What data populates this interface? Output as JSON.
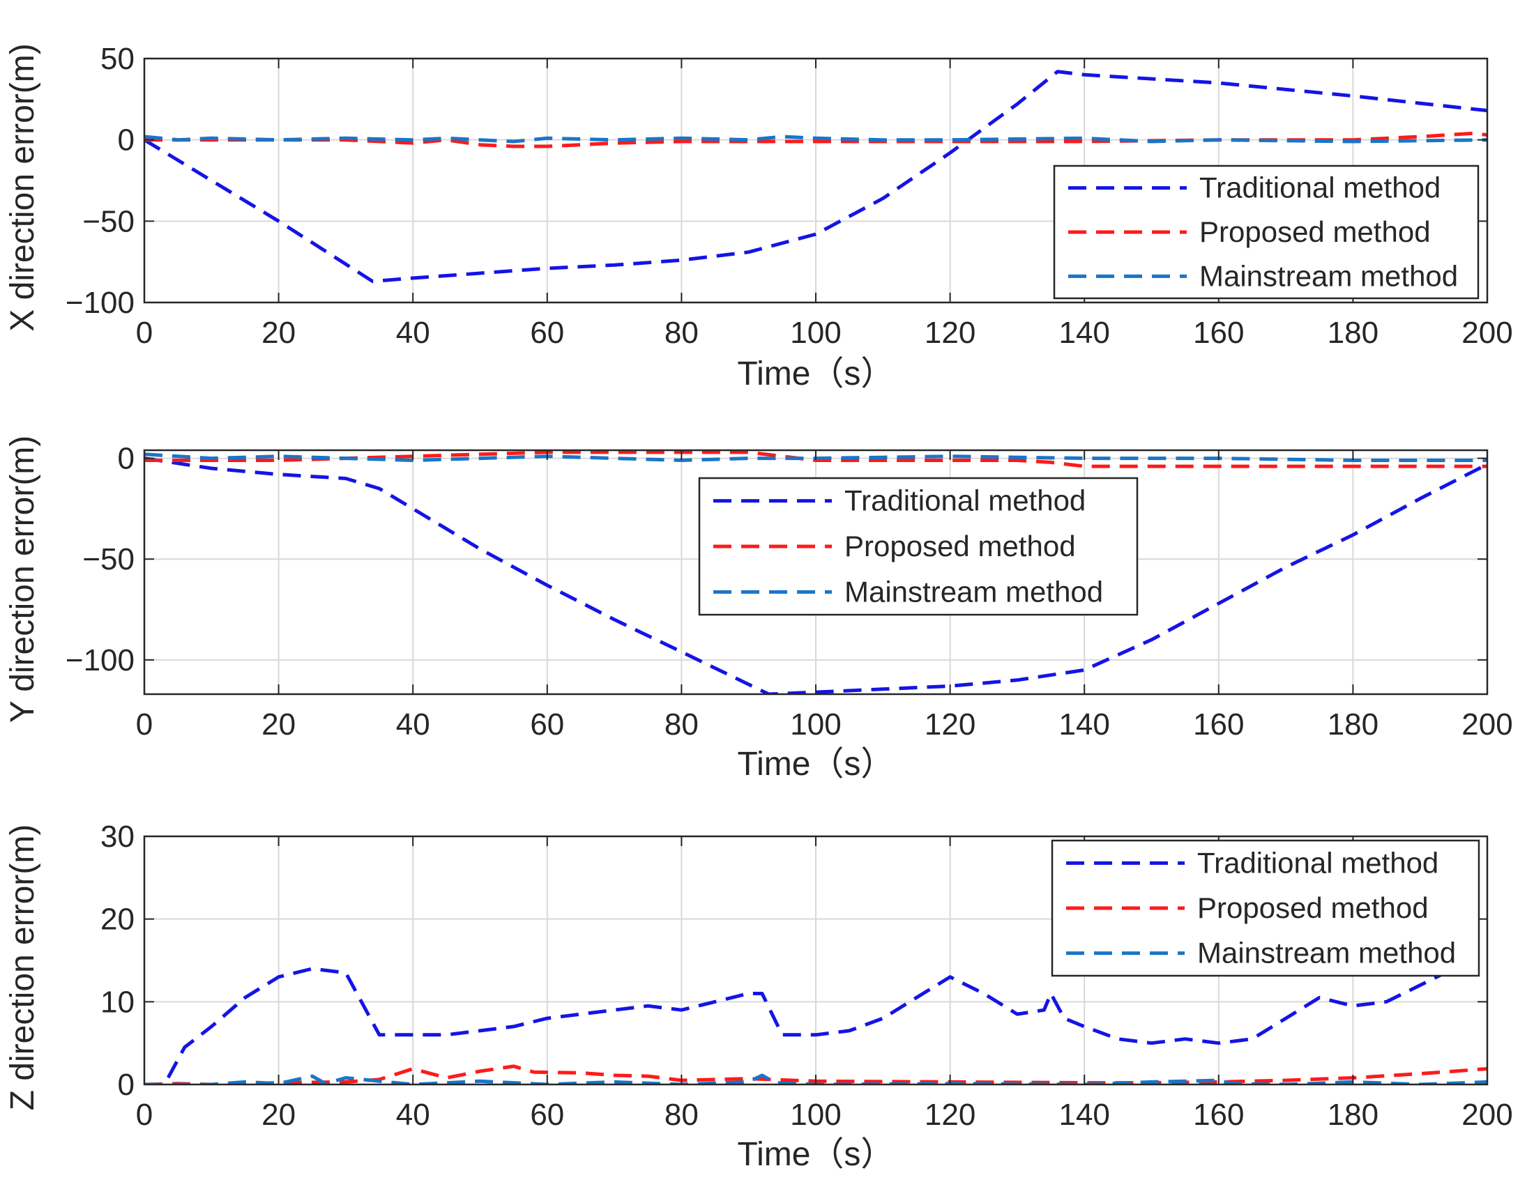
{
  "chart_data": [
    {
      "type": "line",
      "xlabel": "Time（s）",
      "ylabel": "X direction error(m)",
      "xlim": [
        0,
        200
      ],
      "ylim": [
        -100,
        50
      ],
      "xticks": [
        0,
        20,
        40,
        60,
        80,
        100,
        120,
        140,
        160,
        180,
        200
      ],
      "yticks": [
        -100,
        -50,
        0,
        50
      ],
      "ytick_labels": [
        "−100",
        "−50",
        "0",
        "50"
      ],
      "grid": true,
      "legend_position": "right",
      "series": [
        {
          "name": "Traditional method",
          "color": "#1414e6",
          "x": [
            0,
            10,
            20,
            34,
            40,
            50,
            60,
            70,
            80,
            90,
            100,
            110,
            120,
            130,
            136,
            140,
            160,
            180,
            200
          ],
          "y": [
            0,
            -25,
            -50,
            -87,
            -85,
            -82,
            -79,
            -77,
            -74,
            -69,
            -58,
            -36,
            -8,
            22,
            42,
            40,
            35,
            27,
            18
          ]
        },
        {
          "name": "Proposed method",
          "color": "#ff1a1a",
          "x": [
            0,
            10,
            20,
            30,
            40,
            45,
            50,
            55,
            60,
            70,
            80,
            100,
            120,
            140,
            160,
            180,
            190,
            198,
            200
          ],
          "y": [
            0,
            0,
            0,
            0,
            -2,
            0,
            -3,
            -4,
            -4,
            -2,
            -1,
            -1,
            -1,
            -1,
            0,
            0,
            2,
            4,
            3
          ]
        },
        {
          "name": "Mainstream method",
          "color": "#1a75c8",
          "x": [
            0,
            5,
            10,
            20,
            30,
            40,
            45,
            50,
            55,
            60,
            70,
            80,
            90,
            95,
            100,
            110,
            120,
            140,
            150,
            160,
            180,
            200
          ],
          "y": [
            2,
            0,
            1,
            0,
            1,
            0,
            1,
            0,
            -1,
            1,
            0,
            1,
            0,
            2,
            1,
            0,
            0,
            1,
            -1,
            0,
            -1,
            0
          ]
        }
      ]
    },
    {
      "type": "line",
      "xlabel": "Time（s）",
      "ylabel": "Y direction error(m)",
      "xlim": [
        0,
        200
      ],
      "ylim": [
        -117,
        4
      ],
      "xticks": [
        0,
        20,
        40,
        60,
        80,
        100,
        120,
        140,
        160,
        180,
        200
      ],
      "yticks": [
        -100,
        -50,
        0
      ],
      "ytick_labels": [
        "−100",
        "−50",
        "0"
      ],
      "grid": true,
      "legend_position": "center",
      "series": [
        {
          "name": "Traditional method",
          "color": "#1414e6",
          "x": [
            0,
            10,
            20,
            30,
            35,
            40,
            50,
            60,
            70,
            80,
            93,
            100,
            120,
            130,
            140,
            150,
            160,
            170,
            180,
            190,
            200
          ],
          "y": [
            0,
            -5,
            -8,
            -10,
            -15,
            -25,
            -45,
            -63,
            -80,
            -96,
            -117,
            -116,
            -113,
            -110,
            -105,
            -90,
            -72,
            -54,
            -38,
            -20,
            -3
          ]
        },
        {
          "name": "Proposed method",
          "color": "#ff1a1a",
          "x": [
            0,
            20,
            30,
            40,
            50,
            60,
            70,
            80,
            90,
            100,
            120,
            130,
            135,
            140,
            160,
            180,
            200
          ],
          "y": [
            -1,
            -1,
            0,
            1,
            2,
            3,
            3,
            3,
            3,
            -1,
            -1,
            -1,
            -2,
            -4,
            -4,
            -4,
            -4
          ]
        },
        {
          "name": "Mainstream method",
          "color": "#1a75c8",
          "x": [
            0,
            10,
            20,
            30,
            40,
            50,
            60,
            70,
            80,
            90,
            100,
            120,
            140,
            160,
            180,
            200
          ],
          "y": [
            2,
            0,
            1,
            0,
            -1,
            0,
            1,
            0,
            -1,
            0,
            0,
            1,
            0,
            0,
            -1,
            -1
          ]
        }
      ]
    },
    {
      "type": "line",
      "xlabel": "Time（s）",
      "ylabel": "Z direction error(m)",
      "xlim": [
        0,
        200
      ],
      "ylim": [
        0,
        30
      ],
      "xticks": [
        0,
        20,
        40,
        60,
        80,
        100,
        120,
        140,
        160,
        180,
        200
      ],
      "yticks": [
        0,
        10,
        20,
        30
      ],
      "ytick_labels": [
        "0",
        "10",
        "20",
        "30"
      ],
      "grid": true,
      "legend_position": "top-right",
      "series": [
        {
          "name": "Traditional method",
          "color": "#1414e6",
          "x": [
            0,
            3,
            6,
            10,
            15,
            20,
            25,
            30,
            35,
            40,
            45,
            50,
            55,
            60,
            65,
            70,
            75,
            80,
            85,
            90,
            92,
            95,
            100,
            105,
            110,
            115,
            120,
            125,
            130,
            134,
            135,
            137,
            140,
            145,
            150,
            155,
            160,
            165,
            170,
            175,
            180,
            185,
            190,
            195,
            200
          ],
          "y": [
            0,
            0,
            4.5,
            7,
            10.5,
            13,
            14,
            13.5,
            6,
            6,
            6,
            6.5,
            7,
            8,
            8.5,
            9,
            9.5,
            9,
            10,
            11,
            11,
            6,
            6,
            6.5,
            8,
            10.5,
            13,
            11,
            8.5,
            9,
            11,
            8,
            7,
            5.5,
            5,
            5.5,
            5,
            5.5,
            8,
            10.5,
            9.5,
            10,
            12,
            14,
            15
          ]
        },
        {
          "name": "Proposed method",
          "color": "#ff1a1a",
          "x": [
            0,
            5,
            10,
            20,
            30,
            35,
            40,
            45,
            50,
            55,
            58,
            65,
            70,
            75,
            80,
            90,
            100,
            120,
            140,
            150,
            160,
            170,
            180,
            190,
            200
          ],
          "y": [
            0,
            0.1,
            0,
            0.2,
            0.3,
            0.6,
            1.9,
            0.8,
            1.6,
            2.2,
            1.5,
            1.4,
            1.1,
            1,
            0.5,
            0.7,
            0.4,
            0.3,
            0.2,
            0.2,
            0.3,
            0.5,
            0.8,
            1.3,
            1.9
          ]
        },
        {
          "name": "Mainstream method",
          "color": "#1a75c8",
          "x": [
            0,
            10,
            15,
            20,
            25,
            27,
            30,
            40,
            50,
            60,
            70,
            80,
            90,
            92,
            94,
            100,
            120,
            140,
            150,
            160,
            162,
            170,
            180,
            190,
            200
          ],
          "y": [
            0,
            0,
            0.3,
            0.1,
            1,
            0.1,
            0.8,
            0,
            0.4,
            0,
            0.3,
            0,
            0.3,
            1.1,
            0.2,
            0,
            0.1,
            0,
            0.3,
            0.5,
            0.1,
            0,
            0.3,
            0,
            0.3
          ]
        }
      ]
    }
  ]
}
